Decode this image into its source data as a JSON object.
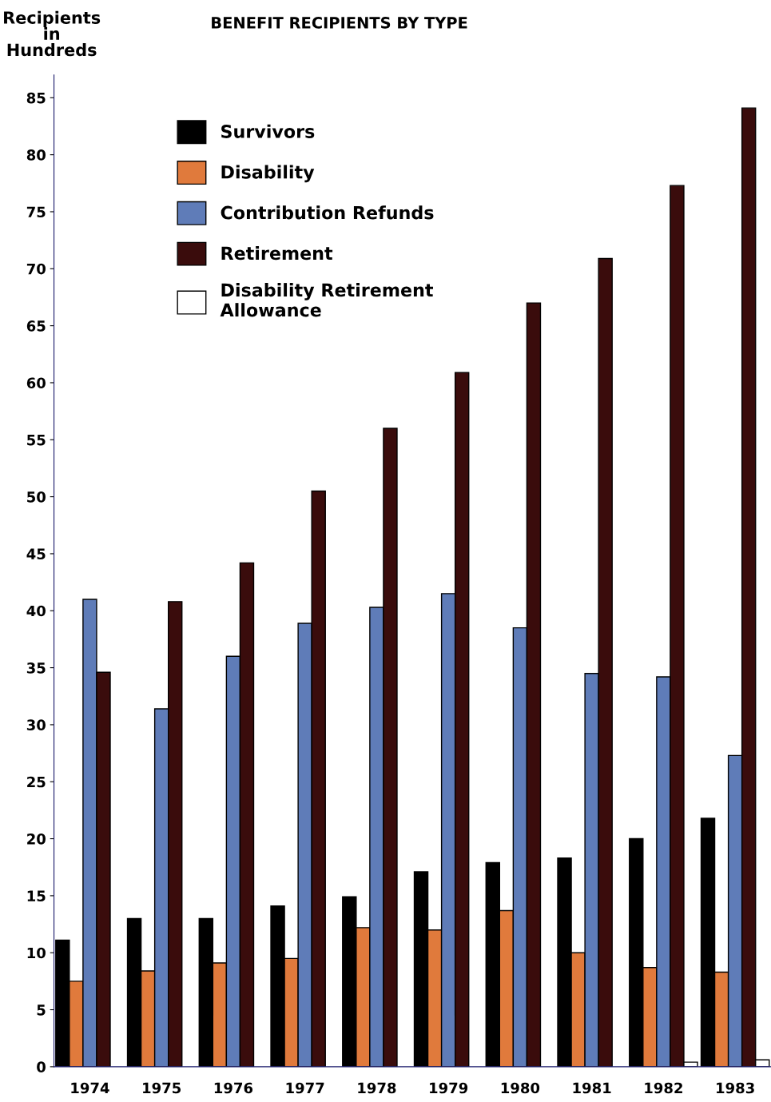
{
  "chart_data": {
    "type": "bar",
    "title": "BENEFIT RECIPIENTS BY TYPE",
    "ylabel": "Recipients\nin\nHundreds",
    "categories": [
      "1974",
      "1975",
      "1976",
      "1977",
      "1978",
      "1979",
      "1980",
      "1981",
      "1982",
      "1983"
    ],
    "series": [
      {
        "name": "Survivors",
        "color": "#000000",
        "values": [
          11.1,
          13,
          13,
          14.1,
          14.9,
          17.1,
          17.9,
          18.3,
          20,
          21.8
        ]
      },
      {
        "name": "Disability",
        "color": "#e07a3c",
        "values": [
          7.5,
          8.4,
          9.1,
          9.5,
          12.2,
          12,
          13.7,
          10,
          8.7,
          8.3
        ]
      },
      {
        "name": "Contribution Refunds",
        "color": "#5f7cb8",
        "values": [
          41,
          31.4,
          36,
          38.9,
          40.3,
          41.5,
          38.5,
          34.5,
          34.2,
          27.3
        ]
      },
      {
        "name": "Retirement",
        "color": "#3a0c0c",
        "values": [
          34.6,
          40.8,
          44.2,
          50.5,
          56,
          60.9,
          67,
          70.9,
          77.3,
          84.1
        ]
      },
      {
        "name": "Disability Retirement\nAllowance",
        "color": "#ffffff",
        "values": [
          null,
          null,
          null,
          null,
          null,
          null,
          null,
          null,
          0.4,
          0.6
        ]
      }
    ],
    "ylim": [
      0,
      87
    ],
    "yticks": [
      0,
      5,
      10,
      15,
      20,
      25,
      30,
      35,
      40,
      45,
      50,
      55,
      60,
      65,
      70,
      75,
      80,
      85
    ],
    "grid": false,
    "legend": "top left"
  }
}
